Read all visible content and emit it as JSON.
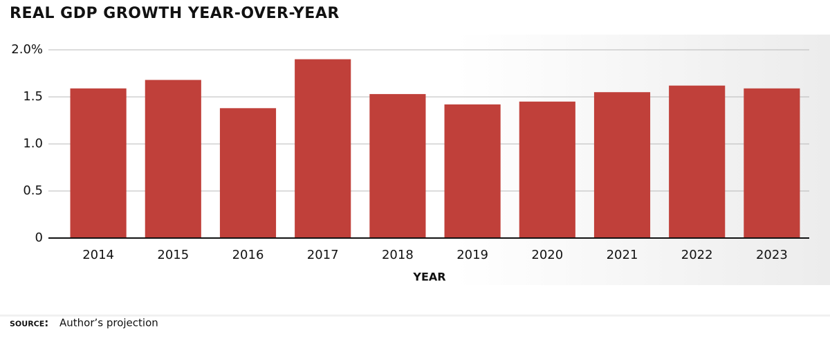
{
  "chart_data": {
    "type": "bar",
    "title": "REAL GDP GROWTH YEAR-OVER-YEAR",
    "categories": [
      "2014",
      "2015",
      "2016",
      "2017",
      "2018",
      "2019",
      "2020",
      "2021",
      "2022",
      "2023"
    ],
    "values": [
      1.59,
      1.68,
      1.38,
      1.9,
      1.53,
      1.42,
      1.45,
      1.55,
      1.62,
      1.59
    ],
    "color": "#c0403a",
    "ylim": [
      0,
      2
    ],
    "yticks": [
      0,
      {
        "value": 0.5,
        "label": "0.5"
      },
      {
        "value": 1,
        "label": "1.0"
      },
      {
        "value": 1.5,
        "label": "1.5"
      },
      {
        "value": 2,
        "label": "2.0%"
      }
    ],
    "grid": true,
    "x_label": "YEAR",
    "source_label": "source:",
    "source": "Author’s projection"
  }
}
